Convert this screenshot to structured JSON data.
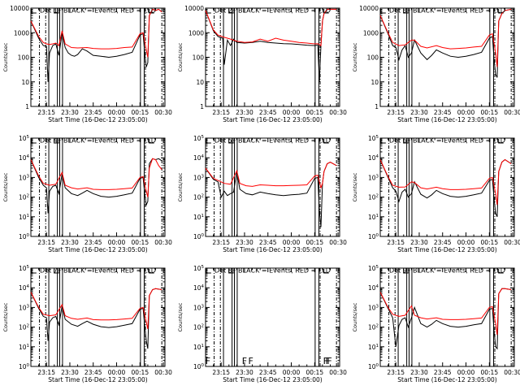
{
  "common": {
    "ylabel": "Counts/sec",
    "xlabel": "Start Time (16-Dec-12 23:05:00)",
    "xticks": [
      "23:15",
      "23:30",
      "23:45",
      "00:00",
      "00:15",
      "00:30"
    ],
    "colors": {
      "events": "#000000",
      "lld": "#ff0000"
    }
  },
  "chart_data": [
    {
      "type": "line",
      "panel": 1,
      "title": "Det 1F BLACK = Events, RED = LLD",
      "yscale": "log",
      "ylim": [
        1,
        10000
      ],
      "ytick_labels": [
        "1",
        "10",
        "100",
        "1000",
        "10000"
      ],
      "x_unit": "minutes since 23:05",
      "series": [
        {
          "name": "Events",
          "x": [
            0,
            5,
            8,
            10,
            11,
            12,
            14,
            16,
            18,
            20,
            22,
            24,
            26,
            28,
            30,
            33,
            36,
            40,
            45,
            50,
            55,
            60,
            65,
            70,
            72,
            73,
            74,
            75,
            76,
            78,
            80,
            82,
            84
          ],
          "y": [
            3000,
            600,
            300,
            280,
            10,
            150,
            300,
            350,
            120,
            1000,
            250,
            150,
            120,
            110,
            130,
            220,
            180,
            120,
            110,
            100,
            110,
            130,
            160,
            800,
            900,
            150,
            40,
            60,
            5000,
            9000,
            8000,
            9000,
            7000
          ]
        },
        {
          "name": "LLD",
          "x": [
            0,
            5,
            8,
            10,
            12,
            14,
            16,
            18,
            20,
            22,
            26,
            30,
            36,
            40,
            45,
            50,
            55,
            60,
            65,
            70,
            72,
            74,
            75,
            76,
            78,
            80,
            82,
            84
          ],
          "y": [
            3000,
            700,
            400,
            350,
            330,
            350,
            380,
            300,
            1200,
            350,
            250,
            240,
            250,
            230,
            220,
            220,
            230,
            250,
            260,
            900,
            1000,
            200,
            100,
            5000,
            9000,
            8000,
            9000,
            7000
          ]
        }
      ]
    },
    {
      "type": "line",
      "panel": 2,
      "title": "Det 2F BLACK = Events, RED = LLD",
      "yscale": "log",
      "ylim": [
        1,
        10000
      ],
      "ytick_labels": [
        "1",
        "10",
        "100",
        "1000",
        "10000"
      ],
      "x_unit": "minutes since 23:05",
      "series": [
        {
          "name": "Events",
          "x": [
            0,
            5,
            8,
            11,
            12,
            14,
            16,
            18,
            20,
            25,
            30,
            35,
            40,
            45,
            50,
            55,
            60,
            65,
            70,
            72,
            73,
            74,
            75,
            76,
            78,
            80,
            84
          ],
          "y": [
            8000,
            1200,
            700,
            600,
            50,
            500,
            300,
            550,
            400,
            380,
            400,
            450,
            400,
            380,
            360,
            350,
            330,
            310,
            300,
            320,
            10,
            300,
            3000,
            6000,
            9000,
            9000,
            9000
          ]
        },
        {
          "name": "LLD",
          "x": [
            0,
            5,
            8,
            12,
            16,
            20,
            25,
            30,
            35,
            40,
            45,
            50,
            55,
            60,
            65,
            70,
            72,
            74,
            75,
            76,
            78,
            80,
            84
          ],
          "y": [
            8000,
            1300,
            800,
            650,
            550,
            450,
            400,
            420,
            550,
            450,
            600,
            500,
            450,
            400,
            380,
            350,
            360,
            300,
            3000,
            6000,
            9000,
            9000,
            9000
          ]
        }
      ]
    },
    {
      "type": "line",
      "panel": 3,
      "title": "Det 3F BLACK = Events, RED = LLD",
      "yscale": "log",
      "ylim": [
        1,
        10000
      ],
      "ytick_labels": [
        "1",
        "10",
        "100",
        "1000",
        "10000"
      ],
      "x_unit": "minutes since 23:05",
      "series": [
        {
          "name": "Events",
          "x": [
            0,
            5,
            8,
            10,
            12,
            14,
            16,
            18,
            20,
            22,
            26,
            30,
            33,
            36,
            40,
            45,
            50,
            55,
            60,
            65,
            70,
            72,
            73,
            74,
            75,
            76,
            78,
            80,
            84
          ],
          "y": [
            5000,
            900,
            300,
            250,
            80,
            200,
            300,
            100,
            150,
            500,
            150,
            80,
            120,
            200,
            150,
            110,
            100,
            110,
            130,
            160,
            600,
            700,
            80,
            20,
            15,
            3000,
            6000,
            8000,
            9000
          ]
        },
        {
          "name": "LLD",
          "x": [
            0,
            5,
            8,
            12,
            16,
            20,
            22,
            26,
            30,
            36,
            40,
            45,
            50,
            55,
            60,
            65,
            70,
            72,
            74,
            75,
            76,
            78,
            80,
            84
          ],
          "y": [
            5000,
            1000,
            400,
            300,
            320,
            500,
            500,
            280,
            240,
            300,
            250,
            220,
            230,
            240,
            260,
            280,
            800,
            900,
            150,
            40,
            3000,
            6000,
            8000,
            9000
          ]
        }
      ]
    },
    {
      "type": "line",
      "panel": 4,
      "title": "Det 4F BLACK = Events, RED = LLD",
      "yscale": "log",
      "ylim": [
        1,
        100000
      ],
      "ytick_labels": [
        "10^0",
        "10^1",
        "10^2",
        "10^3",
        "10^4",
        "10^5"
      ],
      "x_unit": "minutes since 23:05",
      "series": [
        {
          "name": "Events",
          "x": [
            0,
            5,
            8,
            10,
            11,
            12,
            14,
            16,
            18,
            20,
            22,
            26,
            30,
            33,
            36,
            40,
            45,
            50,
            55,
            60,
            65,
            70,
            72,
            73,
            74,
            75,
            76,
            78,
            80,
            82,
            84
          ],
          "y": [
            8000,
            1000,
            400,
            300,
            15,
            200,
            350,
            400,
            150,
            1500,
            300,
            150,
            120,
            160,
            220,
            150,
            110,
            100,
            110,
            130,
            160,
            900,
            1000,
            150,
            40,
            60,
            5000,
            9000,
            8000,
            9000,
            7000
          ]
        },
        {
          "name": "LLD",
          "x": [
            0,
            5,
            8,
            12,
            16,
            20,
            22,
            26,
            30,
            36,
            40,
            45,
            50,
            55,
            60,
            65,
            70,
            72,
            74,
            75,
            76,
            78,
            80,
            82,
            84
          ],
          "y": [
            8000,
            1200,
            500,
            400,
            450,
            1800,
            400,
            300,
            260,
            300,
            250,
            240,
            240,
            250,
            270,
            290,
            1000,
            1100,
            200,
            100,
            3000,
            9000,
            8000,
            4000,
            2500
          ]
        }
      ]
    },
    {
      "type": "line",
      "panel": 5,
      "title": "Det 5F BLACK = Events, RED = LLD",
      "yscale": "log",
      "ylim": [
        1,
        100000
      ],
      "ytick_labels": [
        "10^0",
        "10^1",
        "10^2",
        "10^3",
        "10^4",
        "10^5"
      ],
      "x_unit": "minutes since 23:05",
      "series": [
        {
          "name": "Events",
          "x": [
            0,
            5,
            8,
            10,
            12,
            14,
            16,
            18,
            20,
            22,
            26,
            30,
            35,
            40,
            45,
            50,
            55,
            60,
            65,
            70,
            72,
            73,
            74,
            75,
            76,
            78,
            80,
            84
          ],
          "y": [
            3000,
            800,
            600,
            100,
            200,
            120,
            150,
            180,
            2000,
            250,
            150,
            130,
            180,
            150,
            130,
            120,
            130,
            140,
            160,
            900,
            1000,
            20,
            3,
            500,
            2000,
            5000,
            6000,
            4000
          ]
        },
        {
          "name": "LLD",
          "x": [
            0,
            5,
            8,
            12,
            16,
            20,
            22,
            26,
            30,
            35,
            40,
            45,
            50,
            55,
            60,
            65,
            70,
            72,
            74,
            75,
            76,
            78,
            80,
            84
          ],
          "y": [
            3000,
            900,
            700,
            500,
            450,
            2200,
            500,
            380,
            350,
            420,
            400,
            380,
            380,
            390,
            400,
            420,
            1200,
            1300,
            300,
            500,
            2000,
            5000,
            6000,
            4000
          ]
        }
      ]
    },
    {
      "type": "line",
      "panel": 6,
      "title": "Det 6F BLACK = Events, RED = LLD",
      "yscale": "log",
      "ylim": [
        1,
        100000
      ],
      "ytick_labels": [
        "10^0",
        "10^1",
        "10^2",
        "10^3",
        "10^4",
        "10^5"
      ],
      "x_unit": "minutes since 23:05",
      "series": [
        {
          "name": "Events",
          "x": [
            0,
            5,
            8,
            10,
            12,
            14,
            16,
            18,
            20,
            22,
            26,
            30,
            33,
            36,
            40,
            45,
            50,
            55,
            60,
            65,
            70,
            72,
            73,
            74,
            75,
            76,
            78,
            80,
            84
          ],
          "y": [
            8000,
            1000,
            300,
            200,
            60,
            180,
            250,
            100,
            150,
            600,
            140,
            90,
            130,
            220,
            150,
            110,
            100,
            110,
            130,
            160,
            700,
            800,
            80,
            15,
            10,
            2000,
            6000,
            8000,
            5000
          ]
        },
        {
          "name": "LLD",
          "x": [
            0,
            5,
            8,
            12,
            16,
            20,
            22,
            26,
            30,
            36,
            40,
            45,
            50,
            55,
            60,
            65,
            70,
            72,
            74,
            75,
            76,
            78,
            80,
            84
          ],
          "y": [
            8000,
            1100,
            400,
            320,
            330,
            600,
            550,
            300,
            260,
            320,
            270,
            240,
            240,
            250,
            270,
            290,
            900,
            1000,
            150,
            40,
            2000,
            6000,
            8000,
            5000
          ]
        }
      ]
    },
    {
      "type": "line",
      "panel": 7,
      "title": "Det 7F BLACK = Events, RED = LLD",
      "yscale": "log",
      "ylim": [
        1,
        100000
      ],
      "ytick_labels": [
        "10^0",
        "10^1",
        "10^2",
        "10^3",
        "10^4",
        "10^5"
      ],
      "x_unit": "minutes since 23:05",
      "series": [
        {
          "name": "Events",
          "x": [
            0,
            5,
            8,
            10,
            11,
            12,
            14,
            16,
            18,
            20,
            22,
            26,
            30,
            33,
            36,
            40,
            45,
            50,
            55,
            60,
            65,
            70,
            72,
            73,
            74,
            75,
            76,
            78,
            80,
            84
          ],
          "y": [
            6000,
            900,
            350,
            300,
            20,
            180,
            300,
            350,
            130,
            1200,
            250,
            140,
            110,
            150,
            200,
            140,
            105,
            95,
            105,
            125,
            150,
            800,
            900,
            120,
            20,
            8,
            4000,
            8000,
            9000,
            8000
          ]
        },
        {
          "name": "LLD",
          "x": [
            0,
            5,
            8,
            12,
            16,
            20,
            22,
            26,
            30,
            36,
            40,
            45,
            50,
            55,
            60,
            65,
            70,
            72,
            74,
            75,
            76,
            78,
            80,
            84
          ],
          "y": [
            6000,
            1000,
            450,
            380,
            420,
            1400,
            380,
            280,
            250,
            290,
            240,
            230,
            230,
            240,
            260,
            280,
            900,
            1000,
            180,
            80,
            4000,
            8000,
            9000,
            8000
          ]
        }
      ]
    },
    {
      "type": "line",
      "panel": 8,
      "title": "Det 8F BLACK = Events, RED = LLD",
      "yscale": "log",
      "ylim": [
        1,
        100000
      ],
      "ytick_labels": [
        "10^0",
        "10^1",
        "10^2",
        "10^3",
        "10^4",
        "10^5"
      ],
      "x_unit": "minutes since 23:05",
      "series": [],
      "annotations": [
        "F",
        "F",
        "F",
        "F",
        "F",
        "F"
      ]
    },
    {
      "type": "line",
      "panel": 9,
      "title": "Det 9F BLACK = Events, RED = LLD",
      "yscale": "log",
      "ylim": [
        1,
        100000
      ],
      "ytick_labels": [
        "10^0",
        "10^1",
        "10^2",
        "10^3",
        "10^4",
        "10^5"
      ],
      "x_unit": "minutes since 23:05",
      "series": [
        {
          "name": "Events",
          "x": [
            0,
            5,
            8,
            10,
            12,
            14,
            16,
            18,
            20,
            22,
            26,
            30,
            33,
            36,
            40,
            45,
            50,
            55,
            60,
            65,
            70,
            72,
            73,
            74,
            75,
            76,
            78,
            80,
            84
          ],
          "y": [
            6000,
            900,
            300,
            10,
            120,
            250,
            300,
            100,
            300,
            1000,
            150,
            100,
            140,
            220,
            150,
            110,
            100,
            110,
            130,
            150,
            800,
            900,
            60,
            10,
            8,
            5000,
            9000,
            9000,
            8000
          ]
        },
        {
          "name": "LLD",
          "x": [
            0,
            5,
            8,
            12,
            16,
            20,
            22,
            26,
            30,
            36,
            40,
            45,
            50,
            55,
            60,
            65,
            70,
            72,
            74,
            75,
            76,
            78,
            80,
            84
          ],
          "y": [
            6000,
            1000,
            450,
            350,
            400,
            1200,
            400,
            300,
            260,
            300,
            250,
            240,
            240,
            250,
            270,
            290,
            1000,
            1100,
            150,
            40,
            5000,
            9000,
            9000,
            8000
          ]
        }
      ]
    }
  ]
}
